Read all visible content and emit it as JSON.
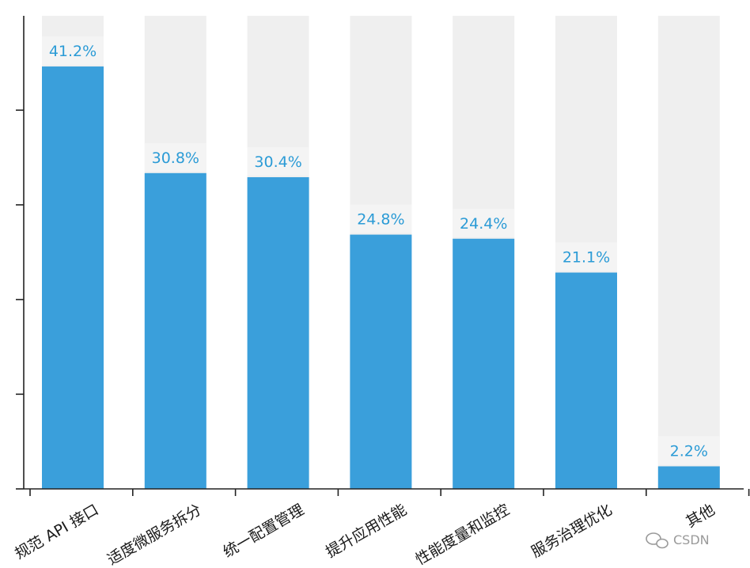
{
  "chart_data": {
    "type": "bar",
    "categories": [
      "规范 API 接口",
      "适度微服务拆分",
      "统一配置管理",
      "提升应用性能",
      "性能度量和监控",
      "服务治理优化",
      "其他"
    ],
    "values": [
      41.2,
      30.8,
      30.4,
      24.8,
      24.4,
      21.1,
      2.2
    ],
    "value_labels": [
      "41.2%",
      "30.8%",
      "30.4%",
      "24.8%",
      "24.4%",
      "21.1%",
      "2.2%"
    ],
    "ylim": [
      0,
      50
    ],
    "background_bars": true,
    "grid": false,
    "colors": {
      "bar": "#3a9fdb",
      "background_bar": "#efefef",
      "label": "#2b9bd6",
      "axis": "#222222"
    }
  },
  "watermark": {
    "text": "CSDN",
    "icon": "wechat-icon"
  }
}
